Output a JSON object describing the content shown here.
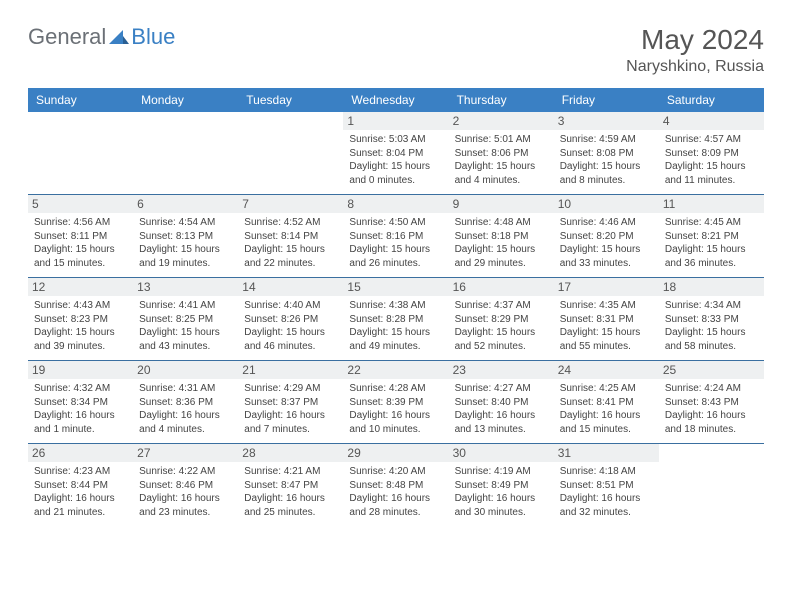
{
  "logo": {
    "text1": "General",
    "text2": "Blue"
  },
  "title": {
    "month": "May 2024",
    "location": "Naryshkino, Russia"
  },
  "colors": {
    "header_bg": "#3a80c4",
    "header_text": "#ffffff",
    "daynum_bg": "#eef0f1",
    "week_border": "#3a6fa0",
    "body_text": "#444444",
    "title_text": "#555555",
    "logo_gray": "#6b7076",
    "logo_blue": "#3a80c4"
  },
  "dayheaders": [
    "Sunday",
    "Monday",
    "Tuesday",
    "Wednesday",
    "Thursday",
    "Friday",
    "Saturday"
  ],
  "weeks": [
    [
      {
        "n": "",
        "sr": "",
        "ss": "",
        "dl": ""
      },
      {
        "n": "",
        "sr": "",
        "ss": "",
        "dl": ""
      },
      {
        "n": "",
        "sr": "",
        "ss": "",
        "dl": ""
      },
      {
        "n": "1",
        "sr": "5:03 AM",
        "ss": "8:04 PM",
        "dl": "15 hours and 0 minutes."
      },
      {
        "n": "2",
        "sr": "5:01 AM",
        "ss": "8:06 PM",
        "dl": "15 hours and 4 minutes."
      },
      {
        "n": "3",
        "sr": "4:59 AM",
        "ss": "8:08 PM",
        "dl": "15 hours and 8 minutes."
      },
      {
        "n": "4",
        "sr": "4:57 AM",
        "ss": "8:09 PM",
        "dl": "15 hours and 11 minutes."
      }
    ],
    [
      {
        "n": "5",
        "sr": "4:56 AM",
        "ss": "8:11 PM",
        "dl": "15 hours and 15 minutes."
      },
      {
        "n": "6",
        "sr": "4:54 AM",
        "ss": "8:13 PM",
        "dl": "15 hours and 19 minutes."
      },
      {
        "n": "7",
        "sr": "4:52 AM",
        "ss": "8:14 PM",
        "dl": "15 hours and 22 minutes."
      },
      {
        "n": "8",
        "sr": "4:50 AM",
        "ss": "8:16 PM",
        "dl": "15 hours and 26 minutes."
      },
      {
        "n": "9",
        "sr": "4:48 AM",
        "ss": "8:18 PM",
        "dl": "15 hours and 29 minutes."
      },
      {
        "n": "10",
        "sr": "4:46 AM",
        "ss": "8:20 PM",
        "dl": "15 hours and 33 minutes."
      },
      {
        "n": "11",
        "sr": "4:45 AM",
        "ss": "8:21 PM",
        "dl": "15 hours and 36 minutes."
      }
    ],
    [
      {
        "n": "12",
        "sr": "4:43 AM",
        "ss": "8:23 PM",
        "dl": "15 hours and 39 minutes."
      },
      {
        "n": "13",
        "sr": "4:41 AM",
        "ss": "8:25 PM",
        "dl": "15 hours and 43 minutes."
      },
      {
        "n": "14",
        "sr": "4:40 AM",
        "ss": "8:26 PM",
        "dl": "15 hours and 46 minutes."
      },
      {
        "n": "15",
        "sr": "4:38 AM",
        "ss": "8:28 PM",
        "dl": "15 hours and 49 minutes."
      },
      {
        "n": "16",
        "sr": "4:37 AM",
        "ss": "8:29 PM",
        "dl": "15 hours and 52 minutes."
      },
      {
        "n": "17",
        "sr": "4:35 AM",
        "ss": "8:31 PM",
        "dl": "15 hours and 55 minutes."
      },
      {
        "n": "18",
        "sr": "4:34 AM",
        "ss": "8:33 PM",
        "dl": "15 hours and 58 minutes."
      }
    ],
    [
      {
        "n": "19",
        "sr": "4:32 AM",
        "ss": "8:34 PM",
        "dl": "16 hours and 1 minute."
      },
      {
        "n": "20",
        "sr": "4:31 AM",
        "ss": "8:36 PM",
        "dl": "16 hours and 4 minutes."
      },
      {
        "n": "21",
        "sr": "4:29 AM",
        "ss": "8:37 PM",
        "dl": "16 hours and 7 minutes."
      },
      {
        "n": "22",
        "sr": "4:28 AM",
        "ss": "8:39 PM",
        "dl": "16 hours and 10 minutes."
      },
      {
        "n": "23",
        "sr": "4:27 AM",
        "ss": "8:40 PM",
        "dl": "16 hours and 13 minutes."
      },
      {
        "n": "24",
        "sr": "4:25 AM",
        "ss": "8:41 PM",
        "dl": "16 hours and 15 minutes."
      },
      {
        "n": "25",
        "sr": "4:24 AM",
        "ss": "8:43 PM",
        "dl": "16 hours and 18 minutes."
      }
    ],
    [
      {
        "n": "26",
        "sr": "4:23 AM",
        "ss": "8:44 PM",
        "dl": "16 hours and 21 minutes."
      },
      {
        "n": "27",
        "sr": "4:22 AM",
        "ss": "8:46 PM",
        "dl": "16 hours and 23 minutes."
      },
      {
        "n": "28",
        "sr": "4:21 AM",
        "ss": "8:47 PM",
        "dl": "16 hours and 25 minutes."
      },
      {
        "n": "29",
        "sr": "4:20 AM",
        "ss": "8:48 PM",
        "dl": "16 hours and 28 minutes."
      },
      {
        "n": "30",
        "sr": "4:19 AM",
        "ss": "8:49 PM",
        "dl": "16 hours and 30 minutes."
      },
      {
        "n": "31",
        "sr": "4:18 AM",
        "ss": "8:51 PM",
        "dl": "16 hours and 32 minutes."
      },
      {
        "n": "",
        "sr": "",
        "ss": "",
        "dl": ""
      }
    ]
  ],
  "labels": {
    "sunrise": "Sunrise:",
    "sunset": "Sunset:",
    "daylight": "Daylight:"
  }
}
